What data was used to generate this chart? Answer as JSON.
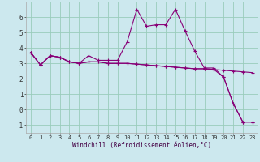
{
  "xlabel": "Windchill (Refroidissement éolien,°C)",
  "bg_color": "#cce8ee",
  "grid_color": "#99ccbb",
  "line_color": "#880077",
  "x": [
    0,
    1,
    2,
    3,
    4,
    5,
    6,
    7,
    8,
    9,
    10,
    11,
    12,
    13,
    14,
    15,
    16,
    17,
    18,
    19,
    20,
    21,
    22,
    23
  ],
  "series1": [
    3.7,
    2.9,
    3.5,
    3.4,
    3.1,
    3.0,
    3.5,
    3.2,
    3.2,
    3.2,
    4.4,
    6.5,
    5.4,
    5.5,
    5.5,
    6.5,
    5.1,
    3.8,
    2.7,
    2.7,
    2.1,
    0.4,
    -0.8,
    -0.8
  ],
  "series2": [
    3.7,
    2.9,
    3.5,
    3.4,
    3.1,
    3.0,
    3.1,
    3.1,
    3.0,
    3.0,
    3.0,
    2.95,
    2.9,
    2.85,
    2.8,
    2.75,
    2.7,
    2.65,
    2.65,
    2.6,
    2.55,
    2.5,
    2.45,
    2.4
  ],
  "series3": [
    3.7,
    2.9,
    3.5,
    3.4,
    3.1,
    3.0,
    3.1,
    3.1,
    3.0,
    3.0,
    3.0,
    2.95,
    2.9,
    2.85,
    2.8,
    2.75,
    2.7,
    2.65,
    2.65,
    2.6,
    2.1,
    0.4,
    -0.8,
    -0.8
  ],
  "ylim": [
    -1.5,
    7.0
  ],
  "xlim": [
    -0.5,
    23.5
  ],
  "yticks": [
    -1,
    0,
    1,
    2,
    3,
    4,
    5,
    6
  ],
  "xticks": [
    0,
    1,
    2,
    3,
    4,
    5,
    6,
    7,
    8,
    9,
    10,
    11,
    12,
    13,
    14,
    15,
    16,
    17,
    18,
    19,
    20,
    21,
    22,
    23
  ]
}
